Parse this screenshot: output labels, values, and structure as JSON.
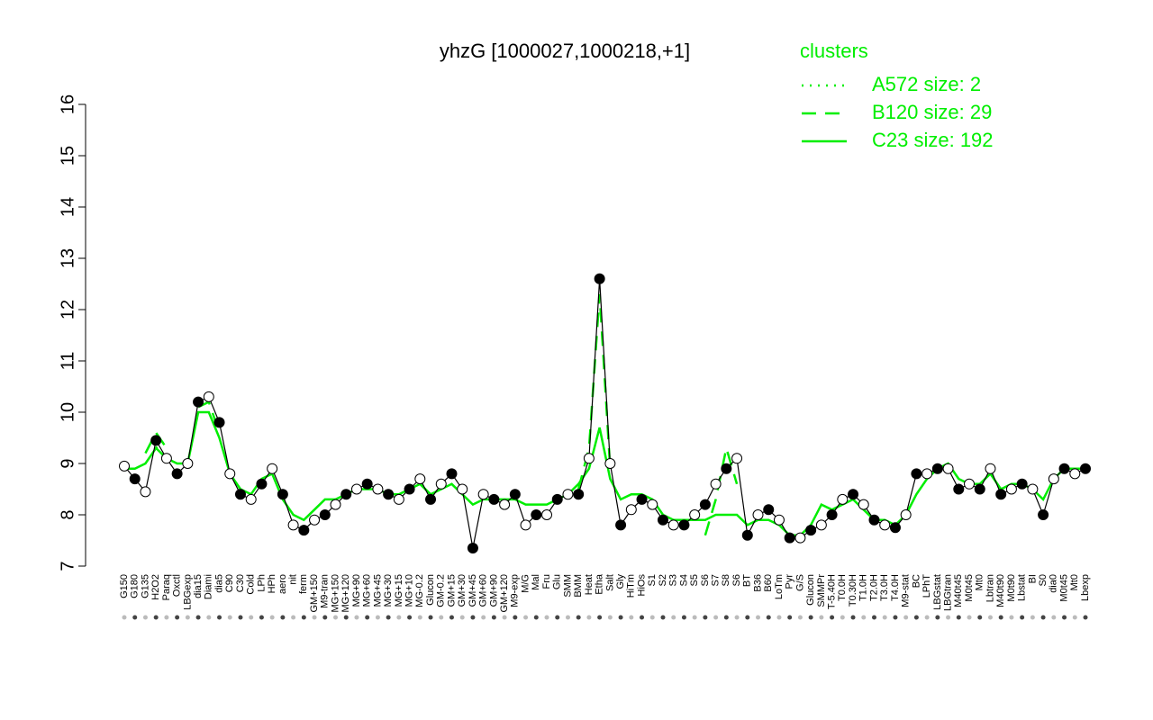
{
  "chart_data": {
    "type": "line",
    "title": "yhzG [1000027,1000218,+1]",
    "legend_title": "clusters",
    "legend_position": "top-right",
    "color": "#000000",
    "categories": [
      "G150",
      "G180",
      "G135",
      "H2O2",
      "Paraq",
      "Oxctl",
      "LBGexp",
      "dia15",
      "Diami",
      "dia5",
      "C90",
      "C30",
      "Cold",
      "LPh",
      "HPh",
      "aero",
      "nit",
      "ferm",
      "GM+150",
      "M9-tran",
      "MG+150",
      "MG+120",
      "MG+90",
      "MG+60",
      "MG+45",
      "MG+30",
      "MG+15",
      "MG+10",
      "MG-0.2",
      "Glucon",
      "GM-0.2",
      "GM+15",
      "GM+30",
      "GM+45",
      "GM+60",
      "GM+90",
      "GM+120",
      "M9-exp",
      "M/G",
      "Mal",
      "Fru",
      "Glu",
      "SMM",
      "BMM",
      "Heat",
      "Etha",
      "Salt",
      "Gly",
      "HiTm",
      "HiOs",
      "S1",
      "S2",
      "S3",
      "S4",
      "S5",
      "S6",
      "S7",
      "S8",
      "S6",
      "BT",
      "B36",
      "B60",
      "LoTm",
      "Pyr",
      "G/S",
      "Glucon",
      "SMMPr",
      "T-5.40H",
      "T0.0H",
      "T0.30H",
      "T1.0H",
      "T2.0H",
      "T3.0H",
      "T4.0H",
      "M9-stat",
      "BC",
      "LPhT",
      "LBGstat",
      "LBGtran",
      "M40t45",
      "M0t45",
      "Mt0",
      "Lbtran",
      "M40t90",
      "M0t90",
      "Lbstat",
      "BI",
      "S0",
      "dia0",
      "M0t45",
      "Mt0",
      "Lbexp"
    ],
    "values": [
      8.95,
      8.7,
      8.45,
      9.45,
      9.1,
      8.8,
      9.0,
      10.2,
      10.3,
      9.8,
      8.8,
      8.4,
      8.3,
      8.6,
      8.9,
      8.4,
      7.8,
      7.7,
      7.9,
      8.0,
      8.2,
      8.4,
      8.5,
      8.6,
      8.5,
      8.4,
      8.3,
      8.5,
      8.7,
      8.3,
      8.6,
      8.8,
      8.5,
      7.35,
      8.4,
      8.3,
      8.2,
      8.4,
      7.8,
      8.0,
      8.0,
      8.3,
      8.4,
      8.4,
      9.1,
      12.6,
      9.0,
      7.8,
      8.1,
      8.3,
      8.2,
      7.9,
      7.8,
      7.8,
      8.0,
      8.2,
      8.6,
      8.9,
      9.1,
      7.6,
      8.0,
      8.1,
      7.9,
      7.55,
      7.55,
      7.7,
      7.8,
      8.0,
      8.3,
      8.4,
      8.2,
      7.9,
      7.8,
      7.75,
      8.0,
      8.8,
      8.8,
      8.9,
      8.9,
      8.5,
      8.6,
      8.5,
      8.9,
      8.4,
      8.5,
      8.6,
      8.5,
      8.0,
      8.7,
      8.9,
      8.8,
      8.9
    ],
    "series": [
      {
        "name": "A572 size: 2",
        "color": "#00ee00",
        "style": "dotted",
        "values": [
          null,
          null,
          null,
          9.3,
          9.5,
          null,
          null,
          null,
          null,
          null,
          null,
          null,
          null,
          null,
          null,
          null,
          null,
          null,
          null,
          null,
          null,
          null,
          null,
          null,
          null,
          null,
          null,
          null,
          null,
          null,
          null,
          null,
          null,
          null,
          null,
          null,
          null,
          null,
          null,
          null,
          null,
          null,
          null,
          null,
          null,
          null,
          null,
          null,
          null,
          null,
          null,
          null,
          null,
          null,
          null,
          null,
          null,
          null,
          null,
          null,
          null,
          null,
          null,
          null,
          null,
          null,
          null,
          null,
          null,
          null,
          null,
          null,
          null,
          null,
          null,
          null,
          null,
          null,
          null,
          null,
          null,
          null,
          null,
          null,
          null,
          null,
          null,
          null,
          null,
          null,
          null,
          null
        ]
      },
      {
        "name": "B120 size: 29",
        "color": "#00ee00",
        "style": "dashed",
        "values": [
          null,
          null,
          9.2,
          9.6,
          9.3,
          null,
          null,
          10.1,
          10.2,
          9.6,
          null,
          null,
          null,
          null,
          null,
          null,
          null,
          null,
          null,
          null,
          null,
          null,
          null,
          null,
          null,
          null,
          null,
          null,
          null,
          null,
          null,
          null,
          null,
          null,
          null,
          null,
          null,
          null,
          null,
          null,
          null,
          null,
          null,
          8.5,
          9.3,
          12.3,
          8.9,
          null,
          null,
          null,
          null,
          null,
          null,
          null,
          null,
          7.6,
          8.3,
          9.3,
          8.6,
          null,
          null,
          null,
          null,
          null,
          null,
          null,
          null,
          null,
          null,
          null,
          null,
          null,
          null,
          null,
          null,
          null,
          null,
          null,
          null,
          null,
          null,
          null,
          null,
          null,
          null,
          null,
          null,
          null,
          null,
          null,
          null,
          null
        ]
      },
      {
        "name": "C23 size: 192",
        "color": "#00ee00",
        "style": "solid",
        "values": [
          8.9,
          8.9,
          9.0,
          9.3,
          9.1,
          9.0,
          9.0,
          10.0,
          10.0,
          9.5,
          8.8,
          8.5,
          8.4,
          8.7,
          8.8,
          8.3,
          8.0,
          7.9,
          8.1,
          8.3,
          8.3,
          8.4,
          8.5,
          8.5,
          8.5,
          8.4,
          8.4,
          8.5,
          8.6,
          8.4,
          8.5,
          8.6,
          8.4,
          8.2,
          8.3,
          8.3,
          8.3,
          8.3,
          8.2,
          8.2,
          8.2,
          8.3,
          8.4,
          8.6,
          8.9,
          9.7,
          8.7,
          8.3,
          8.4,
          8.4,
          8.3,
          8.0,
          7.9,
          7.9,
          7.9,
          7.9,
          8.0,
          8.0,
          8.0,
          7.8,
          7.9,
          7.9,
          7.8,
          7.6,
          7.6,
          7.8,
          8.2,
          8.1,
          8.2,
          8.3,
          8.1,
          7.9,
          7.9,
          7.8,
          8.0,
          8.4,
          8.7,
          8.9,
          9.0,
          8.7,
          8.6,
          8.6,
          8.8,
          8.5,
          8.6,
          8.6,
          8.5,
          8.3,
          8.7,
          8.9,
          8.9,
          8.9
        ]
      }
    ],
    "ylim": [
      7,
      16
    ],
    "yticks": [
      7,
      8,
      9,
      10,
      11,
      12,
      13,
      14,
      15,
      16
    ]
  }
}
